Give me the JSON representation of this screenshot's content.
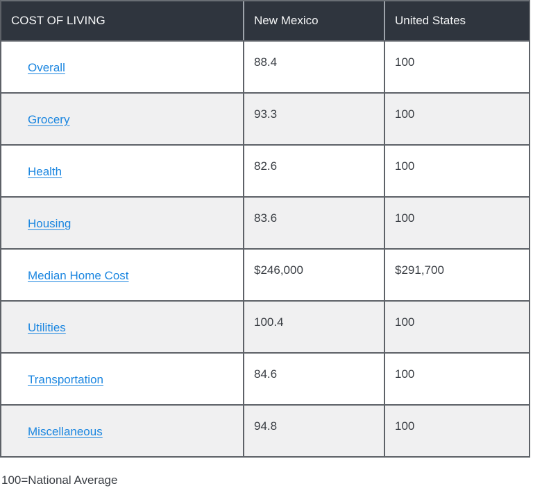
{
  "colors": {
    "header_bg": "#2f353e",
    "header_text": "#f4f5f6",
    "row_bg": "#ffffff",
    "row_alt_bg": "#f0f0f1",
    "body_text": "#3a3e44",
    "link": "#1b86e0",
    "border_dark": "#5d6167",
    "border_light": "#9ea4ab",
    "page_bg": "#ffffff"
  },
  "table": {
    "headers": [
      "COST OF LIVING",
      "New Mexico",
      "United States"
    ],
    "rows": [
      {
        "label": "Overall",
        "new_mexico": "88.4",
        "united_states": "100"
      },
      {
        "label": "Grocery",
        "new_mexico": "93.3",
        "united_states": "100"
      },
      {
        "label": "Health",
        "new_mexico": "82.6",
        "united_states": "100"
      },
      {
        "label": "Housing",
        "new_mexico": "83.6",
        "united_states": "100"
      },
      {
        "label": "Median Home Cost",
        "new_mexico": "$246,000",
        "united_states": "$291,700"
      },
      {
        "label": "Utilities",
        "new_mexico": "100.4",
        "united_states": "100"
      },
      {
        "label": "Transportation",
        "new_mexico": "84.6",
        "united_states": "100"
      },
      {
        "label": "Miscellaneous",
        "new_mexico": "94.8",
        "united_states": "100"
      }
    ]
  },
  "footer": {
    "note": "100=National Average"
  }
}
